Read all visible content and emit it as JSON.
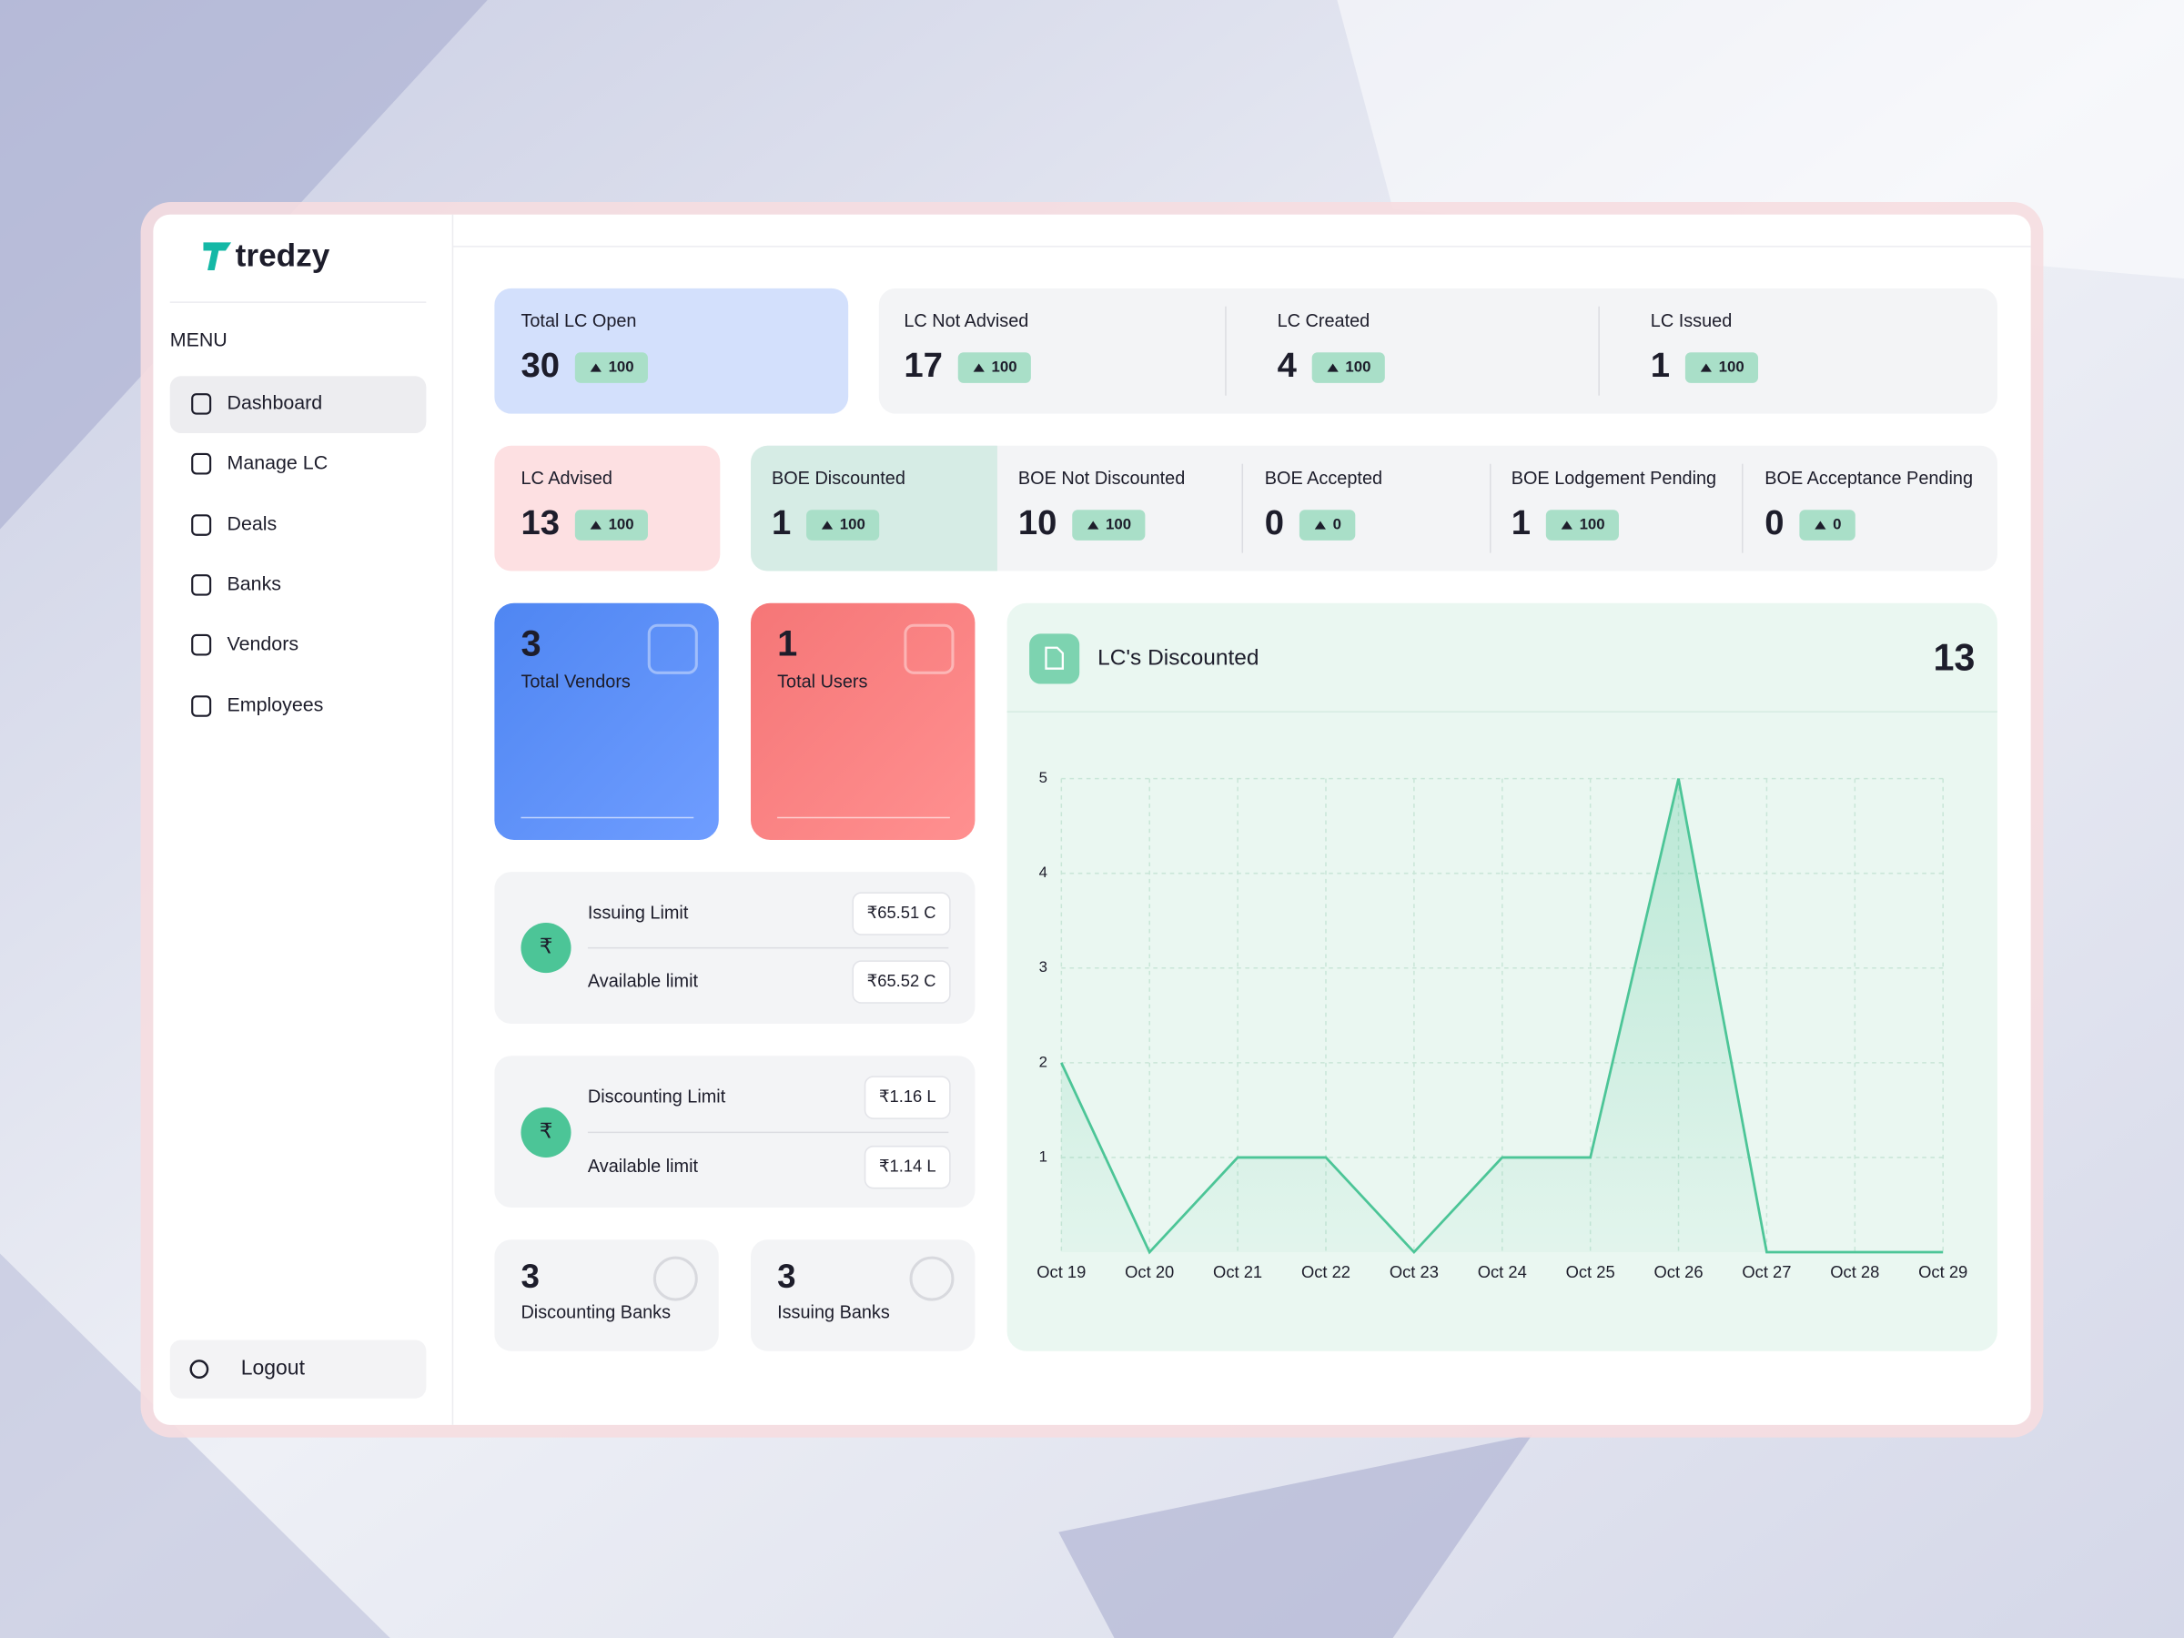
{
  "logo": "tredzy",
  "menu_label": "MENU",
  "menu": [
    "Dashboard",
    "Manage LC",
    "Deals",
    "Banks",
    "Vendors",
    "Employees"
  ],
  "logout": "Logout",
  "stats_top": [
    {
      "label": "Total LC Open",
      "value": 30,
      "change": 100
    },
    {
      "label": "LC Not Advised",
      "value": 17,
      "change": 100
    },
    {
      "label": "LC Created",
      "value": 4,
      "change": 100
    },
    {
      "label": "LC Issued",
      "value": 1,
      "change": 100
    }
  ],
  "stats_second": [
    {
      "label": "LC Advised",
      "value": 13,
      "change": 100
    },
    {
      "label": "BOE Discounted",
      "value": 1,
      "change": 100
    },
    {
      "label": "BOE Not Discounted",
      "value": 10,
      "change": 100
    },
    {
      "label": "BOE Accepted",
      "value": 0,
      "change": 0
    },
    {
      "label": "BOE Lodgement Pending",
      "value": 1,
      "change": 100
    },
    {
      "label": "BOE Acceptance Pending",
      "value": 0,
      "change": 0
    }
  ],
  "tiles": [
    {
      "value": 3,
      "label": "Total Vendors"
    },
    {
      "value": 1,
      "label": "Total Users"
    }
  ],
  "limits": [
    {
      "rows": [
        {
          "label": "Issuing Limit",
          "amount": "₹65.51 C"
        },
        {
          "label": "Available limit",
          "amount": "₹65.52 C"
        }
      ]
    },
    {
      "rows": [
        {
          "label": "Discounting Limit",
          "amount": "₹1.16 L"
        },
        {
          "label": "Available limit",
          "amount": "₹1.14 L"
        }
      ]
    }
  ],
  "banks": [
    {
      "value": 3,
      "label": "Discounting Banks"
    },
    {
      "value": 3,
      "label": "Issuing Banks"
    }
  ],
  "chart_data": {
    "type": "line",
    "title": "LC's Discounted",
    "total": 13,
    "categories": [
      "Oct 19",
      "Oct 20",
      "Oct 21",
      "Oct 22",
      "Oct 23",
      "Oct 24",
      "Oct 25",
      "Oct 26",
      "Oct 27",
      "Oct 28",
      "Oct 29"
    ],
    "values": [
      2,
      0,
      1,
      1,
      0,
      1,
      1,
      5,
      0,
      0,
      0
    ],
    "color": "#4cc597",
    "ylim": [
      0,
      5
    ],
    "yticks": [
      1,
      2,
      3,
      4,
      5
    ],
    "grid": true
  }
}
